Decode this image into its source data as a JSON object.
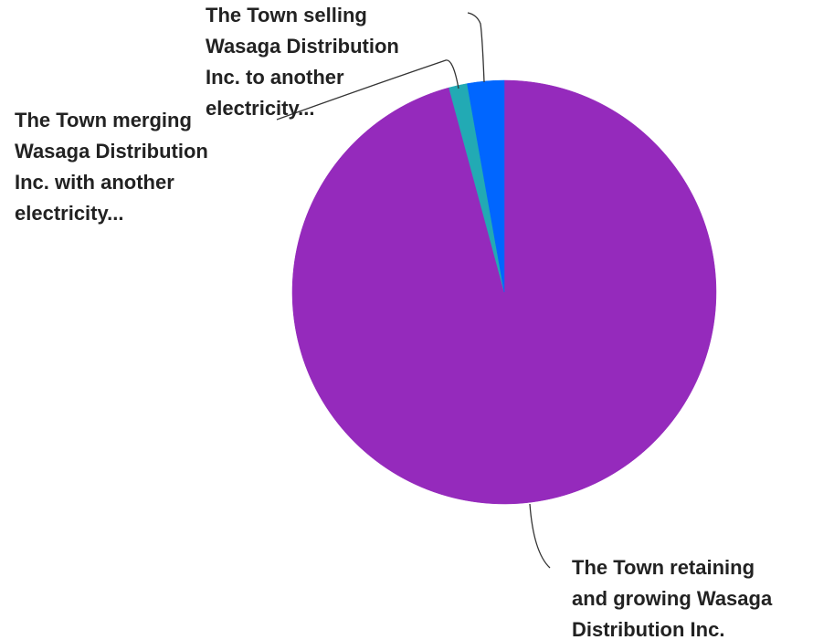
{
  "chart_data": {
    "type": "pie",
    "start_angle": "12 o'clock",
    "direction": "clockwise",
    "slices": [
      {
        "label_lines": [
          "The Town retaining",
          "and growing Wasaga",
          "Distribution Inc."
        ],
        "value": 95.8,
        "color": "#952ABC"
      },
      {
        "label_lines": [
          "The Town merging",
          "Wasaga Distribution",
          "Inc. with another",
          "electricity..."
        ],
        "value": 1.4,
        "color": "#22AAB4"
      },
      {
        "label_lines": [
          "The Town selling",
          "Wasaga Distribution",
          "Inc. to another",
          "electricity..."
        ],
        "value": 2.8,
        "color": "#0066FF"
      }
    ],
    "legend": "none",
    "data_labels": "outside with leader lines"
  }
}
